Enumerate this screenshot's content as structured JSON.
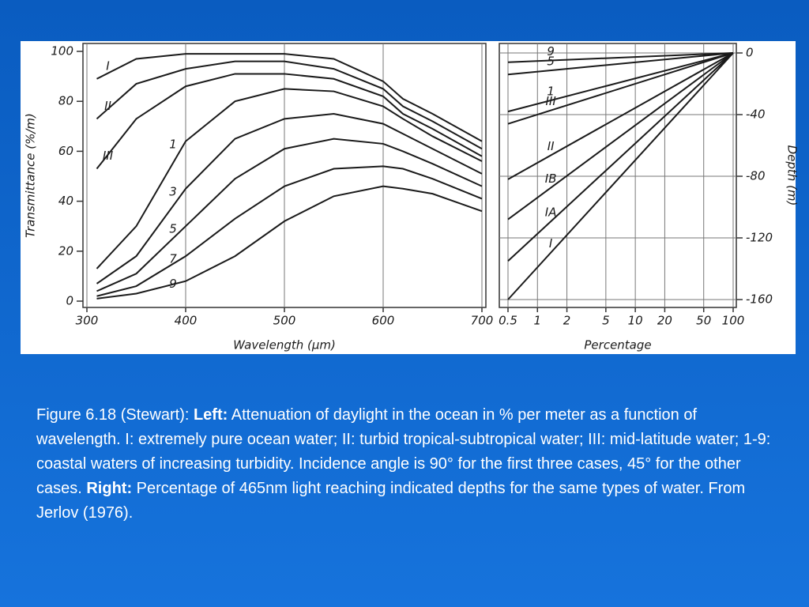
{
  "chart_data": [
    {
      "type": "line",
      "xlabel": "Wavelength (µm)",
      "ylabel": "Transmittance (%/m)",
      "x": [
        310,
        350,
        400,
        450,
        500,
        550,
        600,
        620,
        650,
        700
      ],
      "xlim": [
        300,
        700
      ],
      "xticks": [
        300,
        400,
        500,
        600,
        700
      ],
      "ylim": [
        0,
        100
      ],
      "yticks": [
        0,
        20,
        40,
        60,
        80,
        100
      ],
      "grid": "x",
      "color": "#1a1a1a",
      "series": [
        {
          "name": "I",
          "values": [
            89,
            97,
            99,
            99,
            99,
            97,
            88,
            81,
            75,
            64
          ]
        },
        {
          "name": "II",
          "values": [
            73,
            87,
            93,
            96,
            96,
            93,
            85,
            78,
            72,
            61
          ]
        },
        {
          "name": "III",
          "values": [
            53,
            73,
            86,
            91,
            91,
            89,
            82,
            75,
            69,
            58
          ]
        },
        {
          "name": "1",
          "values": [
            13,
            30,
            64,
            80,
            85,
            84,
            78,
            73,
            66,
            56
          ]
        },
        {
          "name": "3",
          "values": [
            7,
            18,
            45,
            65,
            73,
            75,
            71,
            67,
            61,
            51
          ]
        },
        {
          "name": "5",
          "values": [
            4,
            11,
            30,
            49,
            61,
            65,
            63,
            60,
            55,
            46
          ]
        },
        {
          "name": "7",
          "values": [
            2,
            6,
            18,
            33,
            46,
            53,
            54,
            53,
            49,
            41
          ]
        },
        {
          "name": "9",
          "values": [
            1,
            3,
            8,
            18,
            32,
            42,
            46,
            45,
            43,
            36
          ]
        }
      ]
    },
    {
      "type": "line",
      "xlabel": "Percentage",
      "ylabel": "Depth (m)",
      "x": [
        0.5,
        100
      ],
      "xscale": "log",
      "xlim": [
        0.5,
        100
      ],
      "xticks": [
        0.5,
        1,
        2,
        5,
        10,
        20,
        50,
        100
      ],
      "ylim": [
        -160,
        0
      ],
      "yticks": [
        0,
        -40,
        -80,
        -120,
        -160
      ],
      "y_axis_side": "right",
      "grid": "both",
      "color": "#1a1a1a",
      "series": [
        {
          "name": "9",
          "values": [
            -6,
            0
          ]
        },
        {
          "name": "5",
          "values": [
            -14,
            0
          ]
        },
        {
          "name": "1",
          "values": [
            -38,
            0
          ]
        },
        {
          "name": "III",
          "values": [
            -46,
            0
          ]
        },
        {
          "name": "II",
          "values": [
            -82,
            0
          ]
        },
        {
          "name": "IB",
          "values": [
            -108,
            0
          ]
        },
        {
          "name": "IA",
          "values": [
            -135,
            0
          ]
        },
        {
          "name": "I",
          "values": [
            -160,
            0
          ]
        }
      ]
    }
  ],
  "caption": [
    "Figure 6.18 (Stewart): ",
    "Left:",
    " Attenuation of daylight in the ocean in % per meter as a function of wavelength. I: extremely pure ocean water; II: turbid tropical-subtropical water; III: mid-latitude water; 1-9: coastal waters of increasing turbidity. Incidence angle is 90° for the first three cases, 45° for the other cases. ",
    "Right:",
    " Percentage of 465nm light reaching indicated depths for the same types of water. From Jerlov (1976)."
  ]
}
